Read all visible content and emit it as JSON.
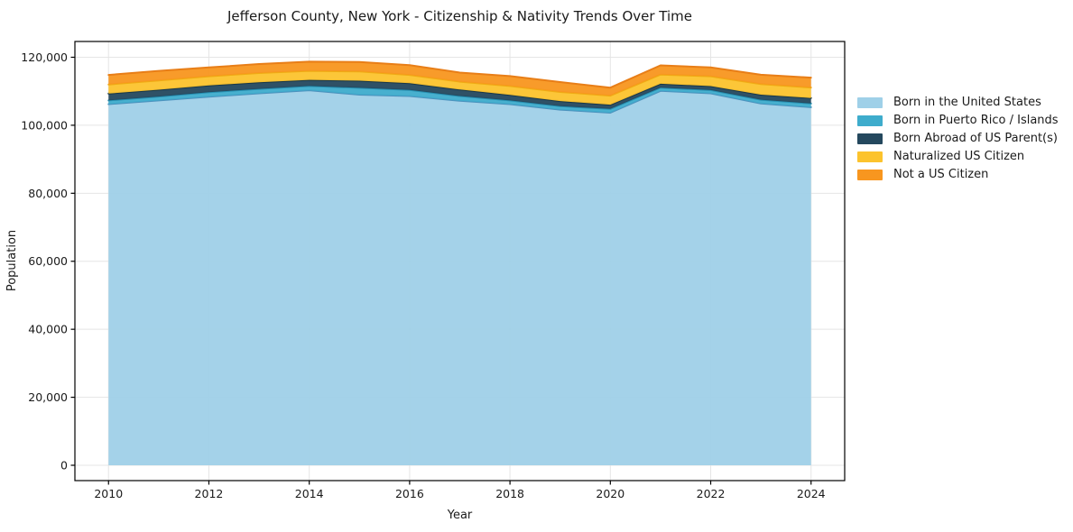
{
  "chart_data": {
    "type": "area",
    "stacked": true,
    "title": "Jefferson County, New York - Citizenship & Nativity Trends Over Time",
    "xlabel": "Year",
    "ylabel": "Population",
    "x": [
      2010,
      2011,
      2012,
      2013,
      2014,
      2015,
      2016,
      2017,
      2018,
      2019,
      2020,
      2021,
      2022,
      2023,
      2024
    ],
    "series": [
      {
        "name": "Born in the United States",
        "color": "#9FD0E8",
        "edge_color": "#4E93BE",
        "values": [
          106200,
          107300,
          108400,
          109400,
          110300,
          109000,
          108600,
          107200,
          106200,
          104600,
          103700,
          110100,
          109400,
          106400,
          105300
        ]
      },
      {
        "name": "Born in Puerto Rico / Islands",
        "color": "#3EACCC",
        "edge_color": "#2791B3",
        "values": [
          1100,
          1150,
          1300,
          1300,
          1250,
          2000,
          1800,
          1400,
          1100,
          1000,
          1100,
          950,
          950,
          1100,
          1100
        ]
      },
      {
        "name": "Born Abroad of US Parent(s)",
        "color": "#24485E",
        "edge_color": "#17374A",
        "values": [
          2000,
          2000,
          2000,
          1950,
          1800,
          2100,
          2000,
          1900,
          1650,
          1500,
          1250,
          1150,
          1150,
          1500,
          1600
        ]
      },
      {
        "name": "Naturalized US Citizen",
        "color": "#FCC32D",
        "edge_color": "#EFAC14",
        "values": [
          2700,
          2700,
          2700,
          2700,
          2650,
          2700,
          2400,
          2300,
          2600,
          2700,
          2650,
          2700,
          2900,
          3100,
          3100
        ]
      },
      {
        "name": "Not a US Citizen",
        "color": "#F8961F",
        "edge_color": "#E87E17",
        "values": [
          2800,
          2850,
          2600,
          2650,
          2700,
          2800,
          2900,
          2700,
          2900,
          2900,
          2350,
          2700,
          2600,
          2750,
          2900
        ]
      }
    ],
    "xticks": {
      "values": [
        2010,
        2012,
        2014,
        2016,
        2018,
        2020,
        2022,
        2024
      ],
      "labels": [
        "2010",
        "2012",
        "2014",
        "2016",
        "2018",
        "2020",
        "2022",
        "2024"
      ]
    },
    "yticks": {
      "values": [
        0,
        20000,
        40000,
        60000,
        80000,
        100000,
        120000
      ],
      "labels": [
        "0",
        "20,000",
        "40,000",
        "60,000",
        "80,000",
        "100,000",
        "120,000"
      ]
    },
    "xlim": [
      2009.33,
      2024.67
    ],
    "ylim": [
      -4508,
      124640
    ],
    "grid": true,
    "legend_position": "right",
    "background_color": "#ffffff",
    "grid_color": "#e5e5e5",
    "spine_color": "#000000",
    "text_color": "#1a1a1a"
  }
}
